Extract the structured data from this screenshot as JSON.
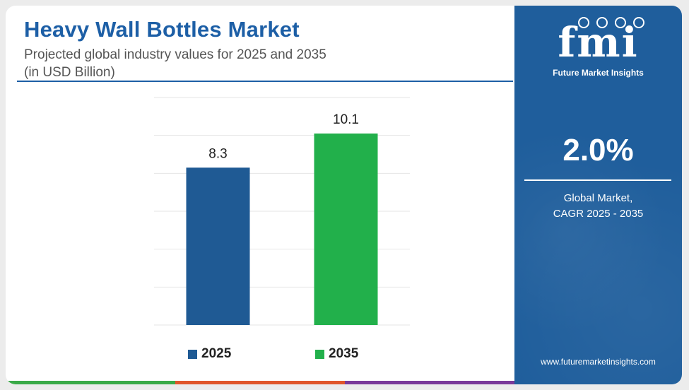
{
  "title": "Heavy Wall Bottles Market",
  "subtitle_line1": "Projected global industry values for 2025 and 2035",
  "subtitle_line2": "(in USD Billion)",
  "colors": {
    "brand_blue": "#1d5fa6",
    "bar_2025": "#1f5a94",
    "bar_2035": "#22b04b",
    "sidebar": "#1f5e9c",
    "footer": [
      "#3aaa48",
      "#e0562b",
      "#7a3a9a"
    ]
  },
  "chart_data": {
    "type": "bar",
    "categories": [
      "2025",
      "2035"
    ],
    "values": [
      8.3,
      10.1
    ],
    "value_labels": [
      "8.3",
      "10.1"
    ],
    "colors": [
      "#1f5a94",
      "#22b04b"
    ],
    "ylim": [
      0,
      12
    ],
    "y_axis_visible": false,
    "grid": true,
    "legend": [
      {
        "label": "2025",
        "color": "#1f5a94"
      },
      {
        "label": "2035",
        "color": "#22b04b"
      }
    ],
    "legend_position": "bottom"
  },
  "sidebar": {
    "logo_text": "fmi",
    "logo_subtitle": "Future Market Insights",
    "cagr_value": "2.0%",
    "cagr_label_line1": "Global Market,",
    "cagr_label_line2": "CAGR 2025 - 2035",
    "website": "www.futuremarketinsights.com"
  }
}
